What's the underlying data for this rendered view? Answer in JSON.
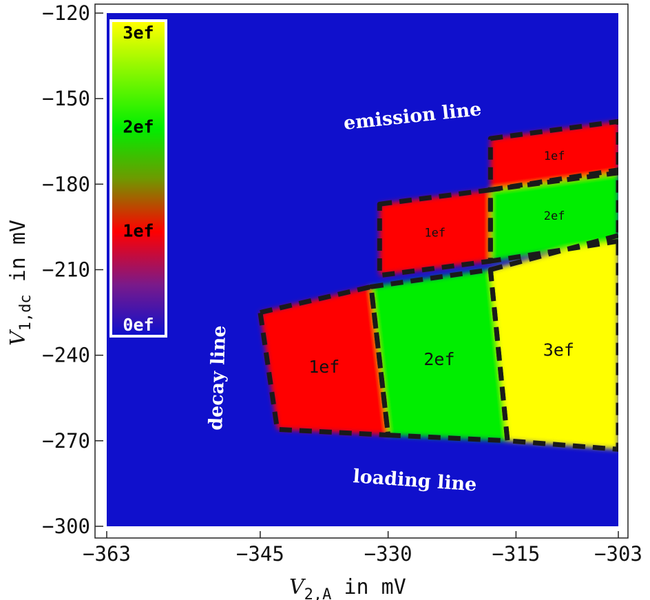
{
  "chart_data": {
    "type": "heatmap",
    "title": "",
    "xlabel": {
      "base": "V",
      "sub": "2,A",
      "rest": " in mV"
    },
    "ylabel": {
      "base": "V",
      "sub": "1,dc",
      "rest": " in mV"
    },
    "xlim": [
      -363,
      -303
    ],
    "ylim": [
      -300,
      -120
    ],
    "x_ticks": [
      -363,
      -345,
      -330,
      -315,
      -303
    ],
    "y_ticks": [
      -120,
      -150,
      -180,
      -210,
      -240,
      -270,
      -300
    ],
    "colorbar": {
      "labels": [
        "3ef",
        "2ef",
        "1ef",
        "0ef"
      ],
      "levels": [
        3,
        2,
        1,
        0
      ],
      "colors": {
        "0": "#1010cc",
        "1": "#ff0000",
        "2": "#00ee00",
        "3": "#ffff00"
      }
    },
    "regions": [
      {
        "label": "1ef",
        "value": 1,
        "polygon": [
          [
            -345,
            -225
          ],
          [
            -332,
            -216
          ],
          [
            -330,
            -268
          ],
          [
            -343,
            -266
          ]
        ]
      },
      {
        "label": "2ef",
        "value": 2,
        "polygon": [
          [
            -332,
            -216
          ],
          [
            -318,
            -210
          ],
          [
            -316,
            -270
          ],
          [
            -330,
            -268
          ]
        ]
      },
      {
        "label": "3ef",
        "value": 3,
        "polygon": [
          [
            -318,
            -210
          ],
          [
            -303,
            -198
          ],
          [
            -303,
            -273
          ],
          [
            -316,
            -270
          ]
        ]
      },
      {
        "label": "1ef",
        "value": 1,
        "polygon": [
          [
            -331,
            -187
          ],
          [
            -318,
            -182
          ],
          [
            -318,
            -207
          ],
          [
            -331,
            -212
          ]
        ]
      },
      {
        "label": "2ef",
        "value": 2,
        "polygon": [
          [
            -318,
            -182
          ],
          [
            -303,
            -175
          ],
          [
            -303,
            -200
          ],
          [
            -318,
            -207
          ]
        ]
      },
      {
        "label": "1ef",
        "value": 1,
        "polygon": [
          [
            -318,
            -164
          ],
          [
            -303,
            -158
          ],
          [
            -303,
            -176
          ],
          [
            -318,
            -182
          ]
        ]
      }
    ],
    "annotations": [
      "emission line",
      "decay line",
      "loading line"
    ]
  },
  "colors": {
    "background": "#1010cc",
    "one": "#ff0000",
    "two": "#00ee00",
    "three": "#ffff00"
  }
}
